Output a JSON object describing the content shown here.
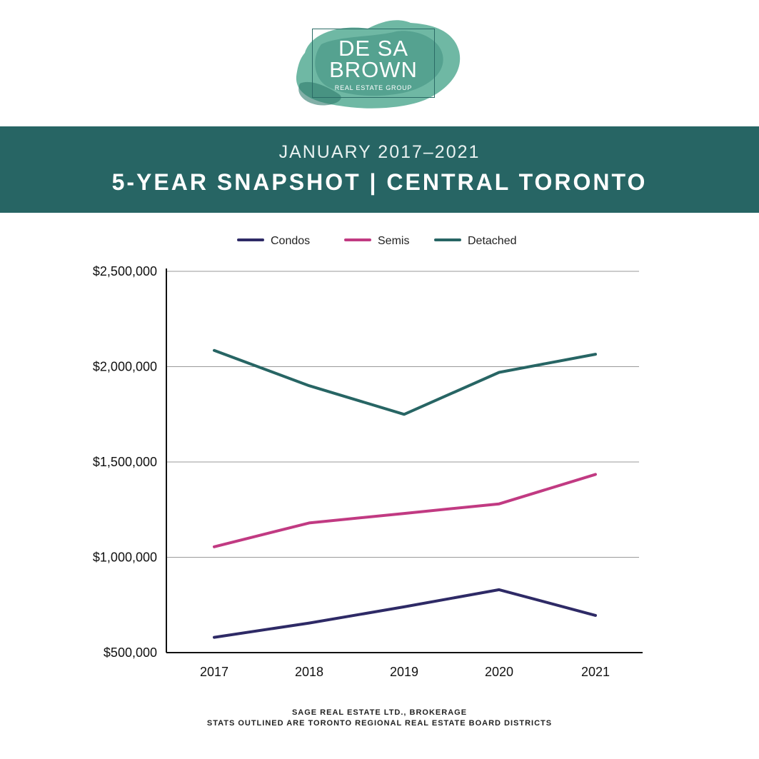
{
  "logo": {
    "line1": "DE SA",
    "line2": "BROWN",
    "line3": "REAL ESTATE GROUP"
  },
  "header": {
    "subtitle": "JANUARY 2017–2021",
    "title": "5-YEAR SNAPSHOT | CENTRAL TORONTO"
  },
  "colors": {
    "banner": "#276564",
    "condos": "#2e2a66",
    "semis": "#c13a82",
    "detached": "#276564"
  },
  "chart_data": {
    "type": "line",
    "title": "",
    "xlabel": "",
    "ylabel": "",
    "categories": [
      "2017",
      "2018",
      "2019",
      "2020",
      "2021"
    ],
    "ylim": [
      500000,
      2500000
    ],
    "y_ticks": [
      {
        "value": 500000,
        "label": "$500,000"
      },
      {
        "value": 1000000,
        "label": "$1,000,000"
      },
      {
        "value": 1500000,
        "label": "$1,500,000"
      },
      {
        "value": 2000000,
        "label": "$2,000,000"
      },
      {
        "value": 2500000,
        "label": "$2,500,000"
      }
    ],
    "grid": true,
    "legend_position": "top-center",
    "series": [
      {
        "name": "Condos",
        "color": "#2e2a66",
        "values": [
          580000,
          655000,
          740000,
          830000,
          695000
        ]
      },
      {
        "name": "Semis",
        "color": "#c13a82",
        "values": [
          1055000,
          1180000,
          1230000,
          1280000,
          1435000
        ]
      },
      {
        "name": "Detached",
        "color": "#276564",
        "values": [
          2085000,
          1900000,
          1750000,
          1970000,
          2065000
        ]
      }
    ]
  },
  "footer": {
    "line1": "SAGE REAL ESTATE LTD., BROKERAGE",
    "line2": "STATS OUTLINED ARE TORONTO REGIONAL REAL ESTATE BOARD DISTRICTS"
  }
}
